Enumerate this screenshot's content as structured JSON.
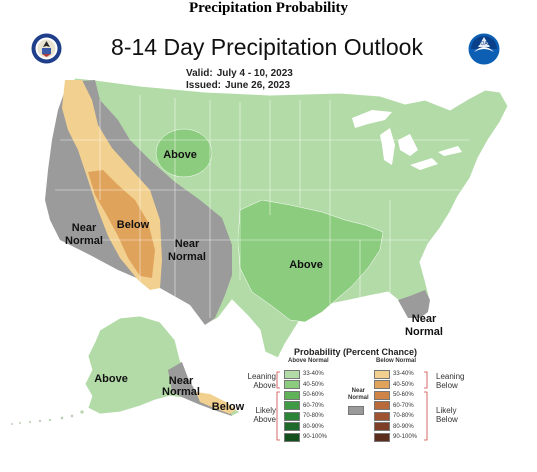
{
  "page": {
    "heading": "Precipitation Probability"
  },
  "map": {
    "title": "8-14 Day Precipitation Outlook",
    "valid_label": "Valid:",
    "valid_value": "July 4 - 10, 2023",
    "issued_label": "Issued:",
    "issued_value": "June 26, 2023",
    "regions": {
      "above_north": "Above",
      "below_west_line1": "Below",
      "near_normal_west_line1": "Near",
      "near_normal_west_line2": "Normal",
      "near_normal_mid_line1": "Near",
      "near_normal_mid_line2": "Normal",
      "above_central": "Above",
      "near_normal_se_line1": "Near",
      "near_normal_se_line2": "Normal",
      "above_alaska": "Above",
      "near_normal_ak_line1": "Near",
      "near_normal_ak_line2": "Normal",
      "below_ak": "Below"
    },
    "colors": {
      "ocean": "#ffffff",
      "above_33_40": "#b3dba8",
      "above_40_50": "#8ccc7e",
      "near_normal": "#9b9b9b",
      "below_33_40": "#f2d08f",
      "below_40_50": "#e0a35b",
      "state_line": "#ffffff"
    }
  },
  "legend": {
    "title": "Probability (Percent Chance)",
    "above_header": "Above Normal",
    "below_header": "Below Normal",
    "near_header_line1": "Near",
    "near_header_line2": "Normal",
    "leaning_above_line1": "Leaning",
    "leaning_above_line2": "Above",
    "likely_above_line1": "Likely",
    "likely_above_line2": "Above",
    "leaning_below_line1": "Leaning",
    "leaning_below_line2": "Below",
    "likely_below_line1": "Likely",
    "likely_below_line2": "Below",
    "above_bins": [
      {
        "label": "33-40%",
        "color": "#b3dba8"
      },
      {
        "label": "40-50%",
        "color": "#8ccc7e"
      },
      {
        "label": "50-60%",
        "color": "#5fb257"
      },
      {
        "label": "60-70%",
        "color": "#3f9a45"
      },
      {
        "label": "70-80%",
        "color": "#2c8438"
      },
      {
        "label": "80-90%",
        "color": "#1d6a2a"
      },
      {
        "label": "90-100%",
        "color": "#124f1c"
      }
    ],
    "below_bins": [
      {
        "label": "33-40%",
        "color": "#f2d08f"
      },
      {
        "label": "40-50%",
        "color": "#e0a35b"
      },
      {
        "label": "50-60%",
        "color": "#cf8446"
      },
      {
        "label": "60-70%",
        "color": "#b96a3a"
      },
      {
        "label": "70-80%",
        "color": "#9e5431"
      },
      {
        "label": "80-90%",
        "color": "#7d4027"
      },
      {
        "label": "90-100%",
        "color": "#5a2d1c"
      }
    ]
  },
  "emblems": {
    "commerce_seal": "commerce-seal-icon",
    "noaa_logo": "noaa-logo-icon",
    "noaa_logo_text": "NOAA"
  }
}
